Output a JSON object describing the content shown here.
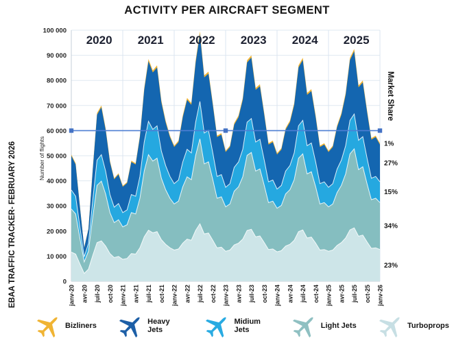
{
  "title": "ACTIVITY PER AIRCRAFT SEGMENT",
  "source_label": "EBAA TRAFFIC TRACKER- FEBRUARY 2026",
  "y_axis": {
    "label": "Number of flights",
    "tick_labels": [
      "100 000",
      "90 000",
      "80 000",
      "70 000",
      "60 000",
      "50 000",
      "40 000",
      "30 000",
      "20 000",
      "10 000",
      "0"
    ]
  },
  "x_axis": {
    "tick_labels": [
      "janv-20",
      "avr-20",
      "juil-20",
      "oct-20",
      "janv-21",
      "avr-21",
      "juil-21",
      "oct-21",
      "janv-22",
      "avr-22",
      "juil-22",
      "oct-22",
      "janv-23",
      "avr-23",
      "juil-23",
      "oct-23",
      "janv-24",
      "avr-24",
      "juil-24",
      "oct-24",
      "janv-25",
      "avr-25",
      "juil-25",
      "oct-25",
      "janv-26"
    ]
  },
  "year_labels": [
    "2020",
    "2021",
    "2022",
    "2023",
    "2024",
    "2025"
  ],
  "right_axis": {
    "label": "Market Share"
  },
  "chart_data": {
    "type": "area",
    "stacked": true,
    "x_start": "janv-20",
    "x_end": "janv-26",
    "months_count": 73,
    "ylim": [
      0,
      100000
    ],
    "grid": true,
    "legend_position": "bottom",
    "totals_by_month": [
      50500,
      47000,
      30000,
      13500,
      21000,
      45000,
      67000,
      70000,
      61000,
      48000,
      41000,
      43000,
      38000,
      39500,
      48000,
      47000,
      58000,
      77000,
      88500,
      84000,
      86000,
      72000,
      64000,
      58000,
      54000,
      56000,
      66000,
      73000,
      71000,
      88000,
      99500,
      82000,
      83500,
      71000,
      58000,
      59000,
      52000,
      54000,
      63000,
      66000,
      73000,
      88000,
      90000,
      77000,
      78500,
      67000,
      55000,
      56000,
      51000,
      53000,
      61000,
      64000,
      71000,
      86000,
      89000,
      75000,
      76500,
      66000,
      54000,
      55000,
      52000,
      54000,
      62000,
      67000,
      75000,
      89000,
      92500,
      78000,
      80000,
      68000,
      57000,
      58000,
      55000
    ],
    "series_bottom_to_top": [
      {
        "name": "Turboprops",
        "share_of_total": 0.23,
        "share_label": "23%",
        "color": "#cde5e8"
      },
      {
        "name": "Light Jets",
        "share_of_total": 0.34,
        "share_label": "34%",
        "color": "#85bec0"
      },
      {
        "name": "Midium Jets",
        "share_of_total": 0.15,
        "share_label": "15%",
        "color": "#25a8e0"
      },
      {
        "name": "Heavy Jets",
        "share_of_total": 0.27,
        "share_label": "27%",
        "color": "#1466b0"
      },
      {
        "name": "Bizliners",
        "share_of_total": 0.01,
        "share_label": "1%",
        "color": "#f0b434"
      }
    ],
    "reference_line": {
      "value": 60000,
      "color": "#4e7fd4",
      "marker_color": "#4472c4",
      "marker_months": [
        0,
        36,
        72
      ]
    }
  },
  "legend": {
    "items": [
      {
        "label": "Bizliners",
        "color": "#f0b434"
      },
      {
        "label": "Heavy Jets",
        "color": "#1d5fa7"
      },
      {
        "label": "Midium Jets",
        "color": "#29abe2"
      },
      {
        "label": "Light Jets",
        "color": "#8fc0c2"
      },
      {
        "label": "Turboprops",
        "color": "#c7dfe4"
      }
    ]
  }
}
